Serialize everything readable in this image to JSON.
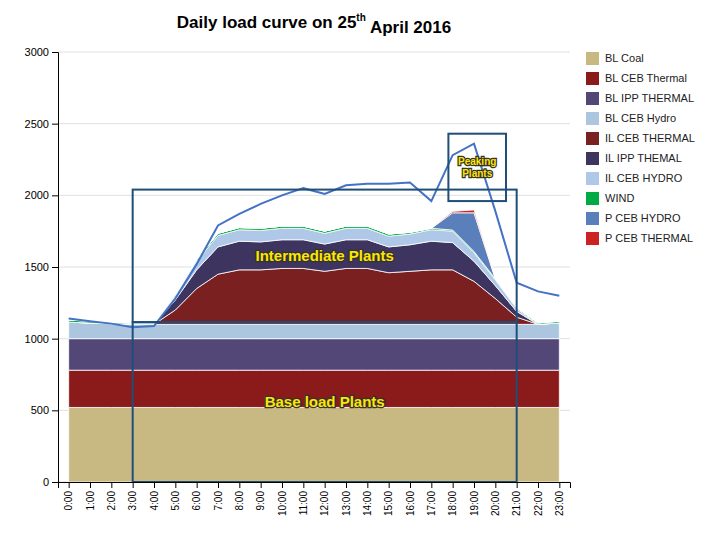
{
  "chart_data": {
    "type": "area",
    "stacked": true,
    "title": [
      "Daily load curve on 25",
      "th",
      " April 2016"
    ],
    "categories": [
      "0:00",
      "1:00",
      "2:00",
      "3:00",
      "4:00",
      "5:00",
      "6:00",
      "7:00",
      "8:00",
      "9:00",
      "10:00",
      "11:00",
      "12:00",
      "13:00",
      "14:00",
      "15:00",
      "16:00",
      "17:00",
      "18:00",
      "19:00",
      "20:00",
      "21:00",
      "22:00",
      "23:00"
    ],
    "series": [
      {
        "name": "BL Coal",
        "color": "#c8b882",
        "values": [
          520,
          520,
          520,
          520,
          520,
          520,
          520,
          520,
          520,
          520,
          520,
          520,
          520,
          520,
          520,
          520,
          520,
          520,
          520,
          520,
          520,
          520,
          520,
          520
        ]
      },
      {
        "name": "BL CEB Thermal",
        "color": "#8b1a1a",
        "values": [
          260,
          260,
          260,
          260,
          260,
          260,
          260,
          260,
          260,
          260,
          260,
          260,
          260,
          260,
          260,
          260,
          260,
          260,
          260,
          260,
          260,
          260,
          260,
          260
        ]
      },
      {
        "name": "BL IPP THERMAL",
        "color": "#534778",
        "values": [
          220,
          220,
          220,
          220,
          220,
          220,
          220,
          220,
          220,
          220,
          220,
          220,
          220,
          220,
          220,
          220,
          220,
          220,
          220,
          220,
          220,
          220,
          220,
          220
        ]
      },
      {
        "name": "BL CEB Hydro",
        "color": "#adc6e0",
        "values": [
          115,
          110,
          105,
          100,
          100,
          100,
          100,
          100,
          100,
          100,
          100,
          100,
          100,
          100,
          100,
          100,
          100,
          100,
          100,
          100,
          100,
          100,
          100,
          110
        ]
      },
      {
        "name": "IL CEB THERMAL",
        "color": "#7a2020",
        "values": [
          0,
          0,
          0,
          0,
          0,
          100,
          250,
          350,
          380,
          380,
          390,
          390,
          370,
          390,
          390,
          360,
          370,
          380,
          380,
          300,
          180,
          50,
          0,
          0
        ]
      },
      {
        "name": "IL IPP THEMAL",
        "color": "#3d3460",
        "values": [
          0,
          0,
          0,
          0,
          0,
          70,
          130,
          190,
          200,
          195,
          200,
          200,
          190,
          200,
          200,
          180,
          185,
          200,
          190,
          140,
          90,
          40,
          0,
          0
        ]
      },
      {
        "name": "IL CEB HYDRO",
        "color": "#b0c8e8",
        "values": [
          0,
          0,
          0,
          0,
          0,
          30,
          60,
          80,
          80,
          80,
          80,
          80,
          75,
          80,
          80,
          75,
          75,
          80,
          80,
          60,
          40,
          20,
          0,
          0
        ]
      },
      {
        "name": "WIND",
        "color": "#00aa44",
        "values": [
          15,
          12,
          10,
          8,
          8,
          10,
          12,
          15,
          15,
          15,
          15,
          15,
          15,
          15,
          15,
          15,
          12,
          10,
          8,
          8,
          8,
          8,
          10,
          12
        ]
      },
      {
        "name": "P CEB HYDRO",
        "color": "#5b7fbb",
        "values": [
          0,
          0,
          0,
          0,
          0,
          0,
          0,
          0,
          0,
          0,
          0,
          0,
          0,
          0,
          0,
          0,
          0,
          0,
          120,
          270,
          0,
          0,
          0,
          0
        ]
      },
      {
        "name": "P CEB THERMAL",
        "color": "#cc2222",
        "values": [
          0,
          0,
          0,
          0,
          0,
          0,
          0,
          0,
          0,
          0,
          0,
          0,
          0,
          0,
          0,
          0,
          0,
          0,
          10,
          20,
          0,
          0,
          0,
          0
        ]
      },
      {
        "type": "line",
        "color": "#4472c4",
        "values": [
          1140,
          1122,
          1105,
          1080,
          1088,
          1280,
          1520,
          1790,
          1870,
          1940,
          2000,
          2050,
          2010,
          2070,
          2080,
          2080,
          2090,
          1960,
          2280,
          2360,
          1890,
          1390,
          1330,
          1300
        ]
      }
    ],
    "annotations": [
      {
        "text": "Base load Plants",
        "x0": 3,
        "x1": 21,
        "y0": 0,
        "y1": 1115,
        "color": "#1f4e79"
      },
      {
        "text": "Intermediate Plants",
        "x0": 3,
        "x1": 21,
        "y0": 1115,
        "y1": 2040,
        "color": "#1f4e79"
      },
      {
        "text": "Peaking\nPlants",
        "x0": 17.8,
        "x1": 20.5,
        "y0": 1960,
        "y1": 2430,
        "color": "#1f4e79"
      }
    ],
    "ylim": [
      0,
      3000
    ],
    "yticks": [
      0,
      500,
      1000,
      1500,
      2000,
      2500,
      3000
    ],
    "grid": true,
    "legend": "right"
  }
}
